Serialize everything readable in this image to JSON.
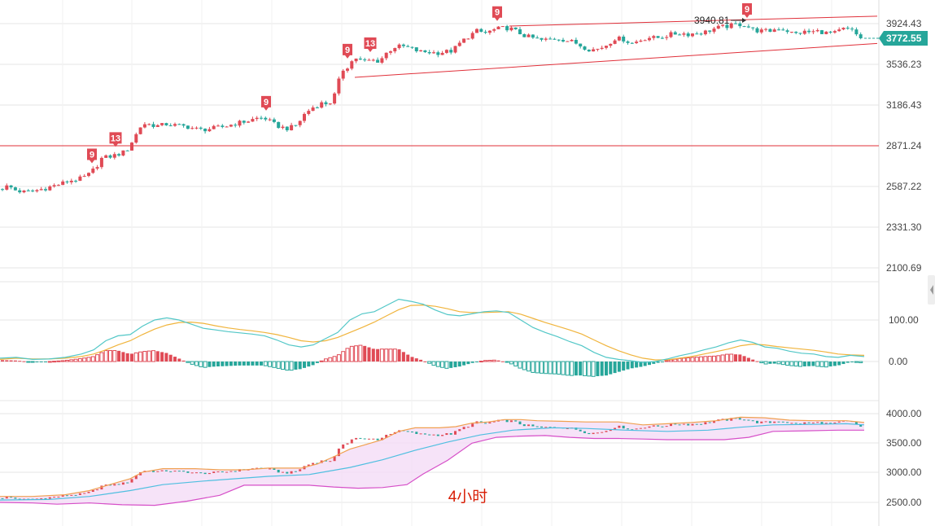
{
  "caption": "4小时",
  "colors": {
    "up": "#e04a55",
    "down": "#26a69a",
    "trendline": "#e0303a",
    "dif": "#52c7c7",
    "dea": "#f0b43c",
    "boll_upper": "#f0a050",
    "boll_lower": "#d64fc8",
    "boll_mid": "#4fbfe0",
    "boll_fill": "#f4dcf6",
    "grid": "#e6e6e6",
    "badge": "#26a69a"
  },
  "chart_data": [
    {
      "type": "candlestick",
      "panel": "price",
      "title": "",
      "y_tick_labels": [
        "3924.43",
        "3536.23",
        "3186.43",
        "2871.24",
        "2587.22",
        "2331.30",
        "2100.69"
      ],
      "ylim": [
        2100,
        4000
      ],
      "y_scale": "log",
      "current_price": "3772.55",
      "high_annotation": "3940.81",
      "horizontal_level": 2871.24,
      "close_path": [
        [
          0,
          2570
        ],
        [
          10,
          2590
        ],
        [
          20,
          2560
        ],
        [
          30,
          2550
        ],
        [
          40,
          2555
        ],
        [
          55,
          2575
        ],
        [
          65,
          2590
        ],
        [
          75,
          2605
        ],
        [
          85,
          2625
        ],
        [
          100,
          2640
        ],
        [
          110,
          2670
        ],
        [
          118,
          2720
        ],
        [
          125,
          2780
        ],
        [
          140,
          2800
        ],
        [
          155,
          2830
        ],
        [
          165,
          2930
        ],
        [
          175,
          3040
        ],
        [
          185,
          3030
        ],
        [
          195,
          3020
        ],
        [
          205,
          3035
        ],
        [
          215,
          3025
        ],
        [
          230,
          3015
        ],
        [
          245,
          2990
        ],
        [
          260,
          3000
        ],
        [
          275,
          3015
        ],
        [
          290,
          3040
        ],
        [
          305,
          3060
        ],
        [
          315,
          3080
        ],
        [
          325,
          3085
        ],
        [
          335,
          3040
        ],
        [
          345,
          3010
        ],
        [
          355,
          3000
        ],
        [
          365,
          3030
        ],
        [
          375,
          3120
        ],
        [
          385,
          3170
        ],
        [
          395,
          3200
        ],
        [
          405,
          3200
        ],
        [
          412,
          3280
        ],
        [
          420,
          3480
        ],
        [
          428,
          3520
        ],
        [
          436,
          3600
        ],
        [
          446,
          3560
        ],
        [
          456,
          3575
        ],
        [
          466,
          3565
        ],
        [
          476,
          3650
        ],
        [
          486,
          3700
        ],
        [
          496,
          3700
        ],
        [
          506,
          3680
        ],
        [
          516,
          3650
        ],
        [
          526,
          3650
        ],
        [
          536,
          3640
        ],
        [
          546,
          3650
        ],
        [
          556,
          3660
        ],
        [
          566,
          3740
        ],
        [
          576,
          3800
        ],
        [
          586,
          3850
        ],
        [
          596,
          3830
        ],
        [
          606,
          3860
        ],
        [
          616,
          3880
        ],
        [
          626,
          3880
        ],
        [
          636,
          3840
        ],
        [
          646,
          3800
        ],
        [
          656,
          3780
        ],
        [
          666,
          3760
        ],
        [
          676,
          3770
        ],
        [
          686,
          3780
        ],
        [
          696,
          3760
        ],
        [
          706,
          3740
        ],
        [
          716,
          3700
        ],
        [
          726,
          3670
        ],
        [
          736,
          3680
        ],
        [
          746,
          3720
        ],
        [
          756,
          3780
        ],
        [
          766,
          3770
        ],
        [
          776,
          3730
        ],
        [
          786,
          3760
        ],
        [
          796,
          3790
        ],
        [
          806,
          3780
        ],
        [
          816,
          3800
        ],
        [
          826,
          3820
        ],
        [
          836,
          3830
        ],
        [
          846,
          3820
        ],
        [
          856,
          3830
        ],
        [
          866,
          3840
        ],
        [
          876,
          3870
        ],
        [
          886,
          3890
        ],
        [
          896,
          3900
        ],
        [
          906,
          3920
        ],
        [
          916,
          3910
        ],
        [
          926,
          3860
        ],
        [
          936,
          3850
        ],
        [
          946,
          3850
        ],
        [
          956,
          3880
        ],
        [
          966,
          3860
        ],
        [
          976,
          3820
        ],
        [
          986,
          3840
        ],
        [
          996,
          3840
        ],
        [
          1006,
          3850
        ],
        [
          1016,
          3830
        ],
        [
          1026,
          3830
        ],
        [
          1036,
          3870
        ],
        [
          1046,
          3860
        ],
        [
          1056,
          3790
        ],
        [
          1062,
          3772
        ]
      ],
      "td_markers": [
        {
          "x": 113,
          "label": "9"
        },
        {
          "x": 142,
          "label": "13"
        },
        {
          "x": 327,
          "label": "9"
        },
        {
          "x": 427,
          "label": "9"
        },
        {
          "x": 455,
          "label": "13"
        },
        {
          "x": 611,
          "label": "9"
        },
        {
          "x": 918,
          "label": "9"
        }
      ],
      "trend_channel": {
        "upper": [
          [
            626,
            3900
          ],
          [
            1078,
            4000
          ]
        ],
        "lower": [
          [
            436,
            3420
          ],
          [
            1078,
            3730
          ]
        ]
      }
    },
    {
      "type": "macd",
      "panel": "indicator",
      "y_tick_labels": [
        "100.00",
        "0.00"
      ],
      "ylim": [
        -60,
        150
      ],
      "dif": [
        [
          0,
          8
        ],
        [
          20,
          10
        ],
        [
          40,
          5
        ],
        [
          60,
          6
        ],
        [
          80,
          10
        ],
        [
          100,
          18
        ],
        [
          115,
          28
        ],
        [
          130,
          50
        ],
        [
          145,
          62
        ],
        [
          160,
          65
        ],
        [
          175,
          85
        ],
        [
          190,
          100
        ],
        [
          205,
          105
        ],
        [
          220,
          100
        ],
        [
          235,
          90
        ],
        [
          250,
          80
        ],
        [
          265,
          76
        ],
        [
          280,
          72
        ],
        [
          295,
          69
        ],
        [
          310,
          66
        ],
        [
          325,
          62
        ],
        [
          340,
          52
        ],
        [
          355,
          40
        ],
        [
          370,
          35
        ],
        [
          385,
          40
        ],
        [
          400,
          55
        ],
        [
          415,
          70
        ],
        [
          430,
          100
        ],
        [
          445,
          115
        ],
        [
          460,
          120
        ],
        [
          475,
          135
        ],
        [
          490,
          150
        ],
        [
          505,
          145
        ],
        [
          520,
          138
        ],
        [
          535,
          124
        ],
        [
          550,
          113
        ],
        [
          565,
          110
        ],
        [
          580,
          115
        ],
        [
          595,
          120
        ],
        [
          610,
          122
        ],
        [
          625,
          118
        ],
        [
          640,
          100
        ],
        [
          655,
          82
        ],
        [
          670,
          70
        ],
        [
          685,
          60
        ],
        [
          700,
          48
        ],
        [
          715,
          38
        ],
        [
          730,
          22
        ],
        [
          745,
          10
        ],
        [
          760,
          5
        ],
        [
          775,
          2
        ],
        [
          790,
          -2
        ],
        [
          805,
          0
        ],
        [
          820,
          6
        ],
        [
          835,
          14
        ],
        [
          850,
          20
        ],
        [
          865,
          28
        ],
        [
          880,
          35
        ],
        [
          895,
          45
        ],
        [
          910,
          52
        ],
        [
          925,
          46
        ],
        [
          940,
          35
        ],
        [
          955,
          32
        ],
        [
          970,
          25
        ],
        [
          985,
          20
        ],
        [
          1000,
          18
        ],
        [
          1015,
          12
        ],
        [
          1030,
          10
        ],
        [
          1045,
          15
        ],
        [
          1062,
          12
        ]
      ],
      "dea": [
        [
          0,
          5
        ],
        [
          20,
          8
        ],
        [
          40,
          6
        ],
        [
          60,
          6
        ],
        [
          80,
          8
        ],
        [
          100,
          12
        ],
        [
          115,
          18
        ],
        [
          130,
          28
        ],
        [
          145,
          40
        ],
        [
          160,
          50
        ],
        [
          175,
          65
        ],
        [
          190,
          78
        ],
        [
          205,
          88
        ],
        [
          220,
          94
        ],
        [
          235,
          95
        ],
        [
          250,
          92
        ],
        [
          265,
          86
        ],
        [
          280,
          81
        ],
        [
          295,
          77
        ],
        [
          310,
          74
        ],
        [
          325,
          70
        ],
        [
          340,
          65
        ],
        [
          355,
          58
        ],
        [
          370,
          50
        ],
        [
          385,
          47
        ],
        [
          400,
          50
        ],
        [
          415,
          58
        ],
        [
          430,
          70
        ],
        [
          445,
          82
        ],
        [
          460,
          95
        ],
        [
          475,
          110
        ],
        [
          490,
          125
        ],
        [
          505,
          135
        ],
        [
          520,
          136
        ],
        [
          535,
          133
        ],
        [
          550,
          127
        ],
        [
          565,
          120
        ],
        [
          580,
          118
        ],
        [
          595,
          118
        ],
        [
          610,
          119
        ],
        [
          625,
          120
        ],
        [
          640,
          114
        ],
        [
          655,
          104
        ],
        [
          670,
          94
        ],
        [
          685,
          85
        ],
        [
          700,
          76
        ],
        [
          715,
          66
        ],
        [
          730,
          52
        ],
        [
          745,
          38
        ],
        [
          760,
          26
        ],
        [
          775,
          16
        ],
        [
          790,
          8
        ],
        [
          805,
          4
        ],
        [
          820,
          4
        ],
        [
          835,
          8
        ],
        [
          850,
          12
        ],
        [
          865,
          18
        ],
        [
          880,
          24
        ],
        [
          895,
          30
        ],
        [
          910,
          38
        ],
        [
          925,
          42
        ],
        [
          940,
          40
        ],
        [
          955,
          36
        ],
        [
          970,
          33
        ],
        [
          985,
          30
        ],
        [
          1000,
          27
        ],
        [
          1015,
          23
        ],
        [
          1030,
          18
        ],
        [
          1045,
          16
        ],
        [
          1062,
          15
        ]
      ],
      "zero_line_value": 0
    },
    {
      "type": "bollinger",
      "panel": "lower",
      "y_tick_labels": [
        "4000.00",
        "3500.00",
        "3000.00",
        "2500.00"
      ],
      "ylim": [
        2400,
        4100
      ],
      "upper": [
        [
          0,
          2600
        ],
        [
          40,
          2600
        ],
        [
          80,
          2630
        ],
        [
          110,
          2700
        ],
        [
          140,
          2820
        ],
        [
          160,
          2900
        ],
        [
          175,
          3010
        ],
        [
          200,
          3070
        ],
        [
          240,
          3070
        ],
        [
          270,
          3050
        ],
        [
          300,
          3050
        ],
        [
          330,
          3080
        ],
        [
          370,
          3080
        ],
        [
          390,
          3150
        ],
        [
          410,
          3270
        ],
        [
          430,
          3400
        ],
        [
          450,
          3480
        ],
        [
          470,
          3560
        ],
        [
          490,
          3700
        ],
        [
          510,
          3760
        ],
        [
          540,
          3760
        ],
        [
          560,
          3780
        ],
        [
          580,
          3840
        ],
        [
          600,
          3860
        ],
        [
          620,
          3900
        ],
        [
          640,
          3900
        ],
        [
          660,
          3880
        ],
        [
          690,
          3870
        ],
        [
          720,
          3860
        ],
        [
          760,
          3860
        ],
        [
          790,
          3810
        ],
        [
          820,
          3830
        ],
        [
          850,
          3850
        ],
        [
          880,
          3880
        ],
        [
          910,
          3940
        ],
        [
          940,
          3930
        ],
        [
          970,
          3890
        ],
        [
          1000,
          3880
        ],
        [
          1040,
          3880
        ],
        [
          1062,
          3850
        ]
      ],
      "middle": [
        [
          0,
          2540
        ],
        [
          60,
          2550
        ],
        [
          110,
          2600
        ],
        [
          160,
          2700
        ],
        [
          200,
          2800
        ],
        [
          250,
          2860
        ],
        [
          290,
          2900
        ],
        [
          330,
          2940
        ],
        [
          380,
          2970
        ],
        [
          430,
          3090
        ],
        [
          470,
          3220
        ],
        [
          510,
          3380
        ],
        [
          550,
          3520
        ],
        [
          590,
          3640
        ],
        [
          630,
          3720
        ],
        [
          680,
          3760
        ],
        [
          720,
          3750
        ],
        [
          770,
          3720
        ],
        [
          820,
          3700
        ],
        [
          870,
          3720
        ],
        [
          910,
          3770
        ],
        [
          950,
          3810
        ],
        [
          1000,
          3820
        ],
        [
          1040,
          3830
        ],
        [
          1062,
          3810
        ]
      ],
      "lower": [
        [
          0,
          2500
        ],
        [
          40,
          2490
        ],
        [
          70,
          2470
        ],
        [
          110,
          2490
        ],
        [
          150,
          2460
        ],
        [
          190,
          2450
        ],
        [
          230,
          2520
        ],
        [
          270,
          2620
        ],
        [
          300,
          2790
        ],
        [
          340,
          2790
        ],
        [
          380,
          2790
        ],
        [
          410,
          2760
        ],
        [
          440,
          2740
        ],
        [
          470,
          2750
        ],
        [
          500,
          2800
        ],
        [
          520,
          2980
        ],
        [
          550,
          3210
        ],
        [
          580,
          3500
        ],
        [
          610,
          3600
        ],
        [
          640,
          3620
        ],
        [
          670,
          3630
        ],
        [
          700,
          3600
        ],
        [
          730,
          3580
        ],
        [
          760,
          3580
        ],
        [
          790,
          3570
        ],
        [
          820,
          3560
        ],
        [
          860,
          3560
        ],
        [
          890,
          3560
        ],
        [
          920,
          3600
        ],
        [
          950,
          3700
        ],
        [
          990,
          3710
        ],
        [
          1030,
          3720
        ],
        [
          1062,
          3720
        ]
      ]
    }
  ]
}
